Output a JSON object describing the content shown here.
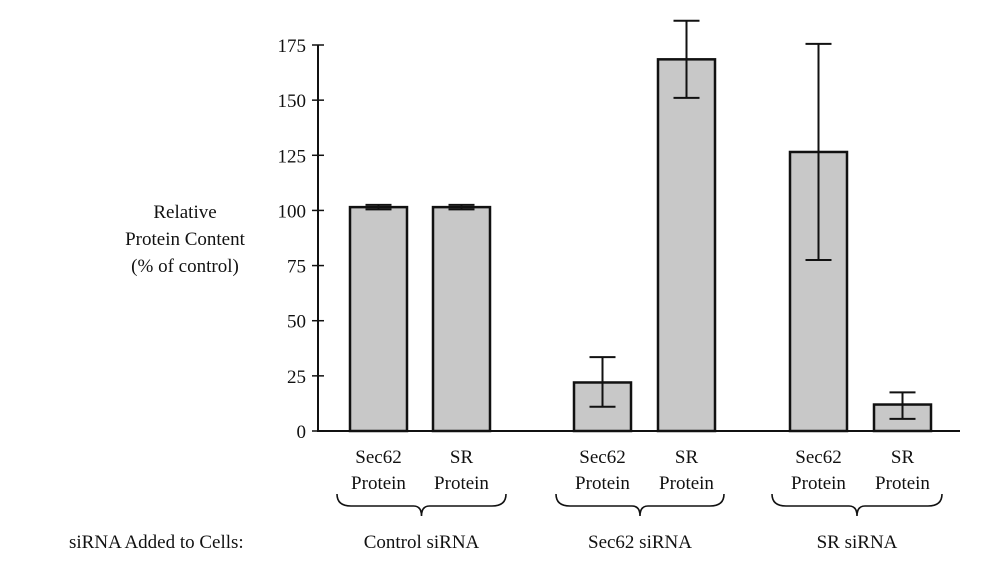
{
  "chart_data": {
    "type": "bar",
    "title": "",
    "ylabel_lines": [
      "Relative",
      "Protein Content",
      "(% of control)"
    ],
    "xlabel": "siRNA Added to Cells:",
    "ylim": [
      0,
      175
    ],
    "yticks": [
      0,
      25,
      50,
      75,
      100,
      125,
      150,
      175
    ],
    "grid": false,
    "bar_color": "#c8c8c8",
    "groups": [
      {
        "label": "Control siRNA",
        "bars": [
          {
            "label_line1": "Sec62",
            "label_line2": "Protein",
            "value": 101.5,
            "err_low": 100.5,
            "err_high": 102.5
          },
          {
            "label_line1": "SR",
            "label_line2": "Protein",
            "value": 101.5,
            "err_low": 100.5,
            "err_high": 102.5
          }
        ]
      },
      {
        "label": "Sec62 siRNA",
        "bars": [
          {
            "label_line1": "Sec62",
            "label_line2": "Protein",
            "value": 22,
            "err_low": 11,
            "err_high": 33.5
          },
          {
            "label_line1": "SR",
            "label_line2": "Protein",
            "value": 168.5,
            "err_low": 151,
            "err_high": 186
          }
        ]
      },
      {
        "label": "SR siRNA",
        "bars": [
          {
            "label_line1": "Sec62",
            "label_line2": "Protein",
            "value": 126.5,
            "err_low": 77.5,
            "err_high": 175.5
          },
          {
            "label_line1": "SR",
            "label_line2": "Protein",
            "value": 12,
            "err_low": 5.5,
            "err_high": 17.5
          }
        ]
      }
    ]
  }
}
